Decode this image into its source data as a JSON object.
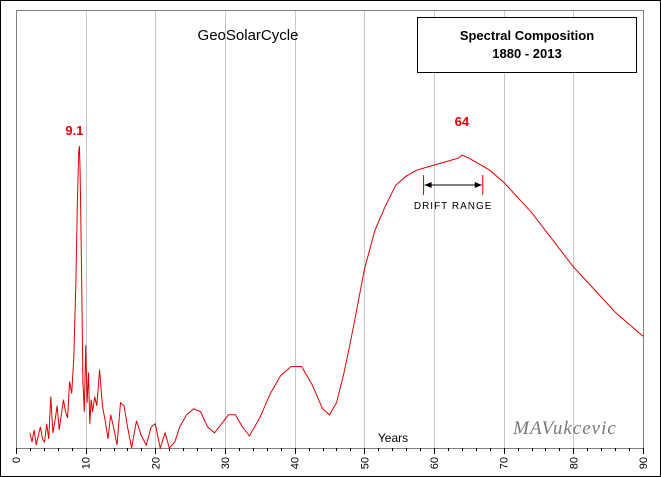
{
  "chart_data": {
    "type": "line",
    "title": "GeoSolarCycle",
    "legend_box": {
      "title": "Spectral Composition",
      "subtitle": "1880  - 2013",
      "placement": "top-right"
    },
    "xlabel": "Years",
    "ylabel": "",
    "xlim": [
      0,
      90
    ],
    "ylim": [
      0,
      100
    ],
    "x_ticks": [
      "0",
      "10",
      "20",
      "30",
      "40",
      "50",
      "60",
      "70",
      "80",
      "90"
    ],
    "grid": "vertical",
    "series_color": "#e00000",
    "peak_labels": [
      {
        "text": "9.1",
        "x": 9.1,
        "y": 100
      },
      {
        "text": "64",
        "x": 64,
        "y": 103
      }
    ],
    "annotation": {
      "text": "DRIFT RANGE",
      "x_start": 58.5,
      "x_end": 67
    },
    "watermark": "MAVukcevic",
    "series": [
      {
        "x": [
          2.0,
          2.3,
          2.6,
          2.9,
          3.2,
          3.5,
          3.8,
          4.1,
          4.4,
          4.7,
          5.0,
          5.3,
          5.6,
          5.9,
          6.2,
          6.5,
          6.8,
          7.1,
          7.4,
          7.7,
          8.0,
          8.3,
          8.6,
          8.8,
          9.0,
          9.1,
          9.2,
          9.4,
          9.6,
          9.8,
          10.0,
          10.2,
          10.4,
          10.6,
          10.8,
          11.0,
          11.3,
          11.6,
          12.0,
          12.4,
          12.8,
          13.2,
          13.6,
          14.0,
          14.5,
          15.0,
          15.5,
          16.0,
          16.6,
          17.3,
          18.0,
          18.7,
          19.4,
          20.0,
          20.7,
          21.4,
          22.0,
          22.8,
          23.5,
          24.5,
          25.5,
          26.5,
          27.5,
          28.5,
          29.5,
          30.5,
          31.5,
          32.5,
          33.5,
          35.0,
          36.5,
          38.0,
          39.5,
          41.0,
          42.5,
          44.0,
          45.0,
          46.0,
          47.0,
          48.0,
          49.0,
          50.0,
          51.5,
          53.0,
          54.5,
          56.0,
          57.5,
          59.0,
          60.5,
          62.0,
          63.5,
          64.0,
          65.0,
          66.5,
          68.0,
          70.0,
          72.0,
          74.0,
          76.0,
          78.0,
          80.0,
          82.0,
          84.0,
          86.0,
          88.0,
          90.0
        ],
        "values": [
          5,
          2,
          6,
          1,
          4,
          7,
          3,
          2,
          8,
          3,
          17,
          5,
          9,
          14,
          6,
          11,
          16,
          12,
          10,
          22,
          18,
          30,
          55,
          80,
          98,
          100,
          92,
          60,
          22,
          12,
          34,
          15,
          25,
          8,
          16,
          12,
          17,
          14,
          26,
          14,
          9,
          3,
          11,
          7,
          1,
          15,
          14,
          7,
          0,
          9,
          4,
          1,
          7,
          8,
          0,
          5,
          0,
          2,
          7,
          11,
          13,
          12,
          7,
          5,
          8,
          11,
          11,
          7,
          4,
          10,
          18,
          24,
          27,
          27,
          21,
          13,
          11,
          15,
          24,
          35,
          47,
          59,
          72,
          80,
          87,
          90,
          92,
          93,
          94,
          95,
          96,
          97,
          96,
          94,
          92,
          88,
          83,
          78,
          72,
          66,
          60,
          55,
          50,
          45,
          41,
          37
        ]
      }
    ]
  }
}
